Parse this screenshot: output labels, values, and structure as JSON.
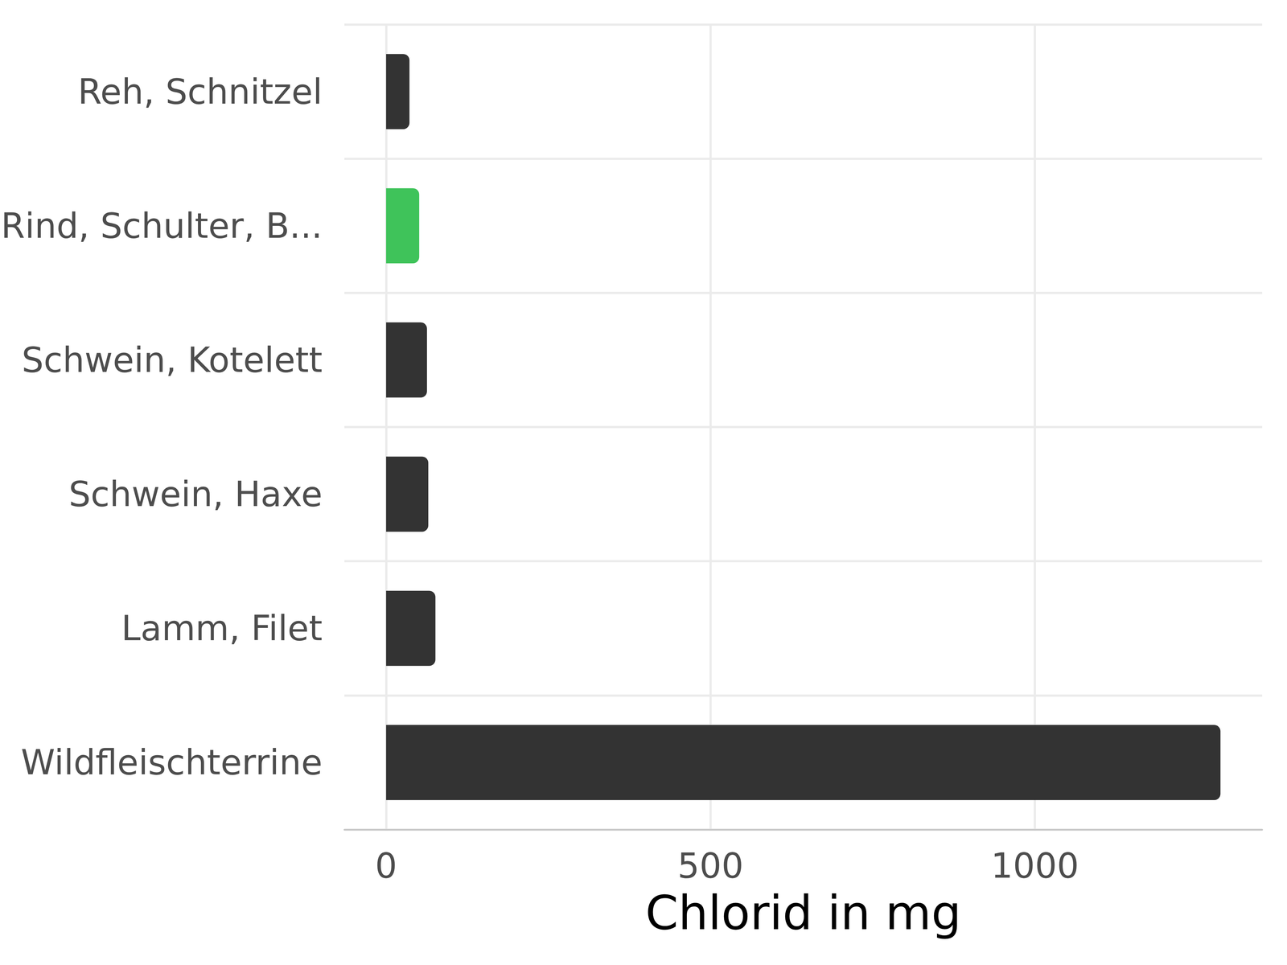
{
  "chart_data": {
    "type": "bar",
    "orientation": "horizontal",
    "categories": [
      "Reh, Schnitzel",
      "Rind, Schulter, B...",
      "Schwein, Kotelett",
      "Schwein, Haxe",
      "Lamm, Filet",
      "Wildfleischterrine"
    ],
    "values": [
      36,
      51,
      63,
      65,
      76,
      1286
    ],
    "colors": [
      "#333333",
      "#3fc35a",
      "#333333",
      "#333333",
      "#333333",
      "#333333"
    ],
    "xlabel": "Chlorid in mg",
    "xlim": [
      -64.3,
      1350.3
    ],
    "xticks": [
      0,
      500,
      1000
    ],
    "grid": true
  }
}
